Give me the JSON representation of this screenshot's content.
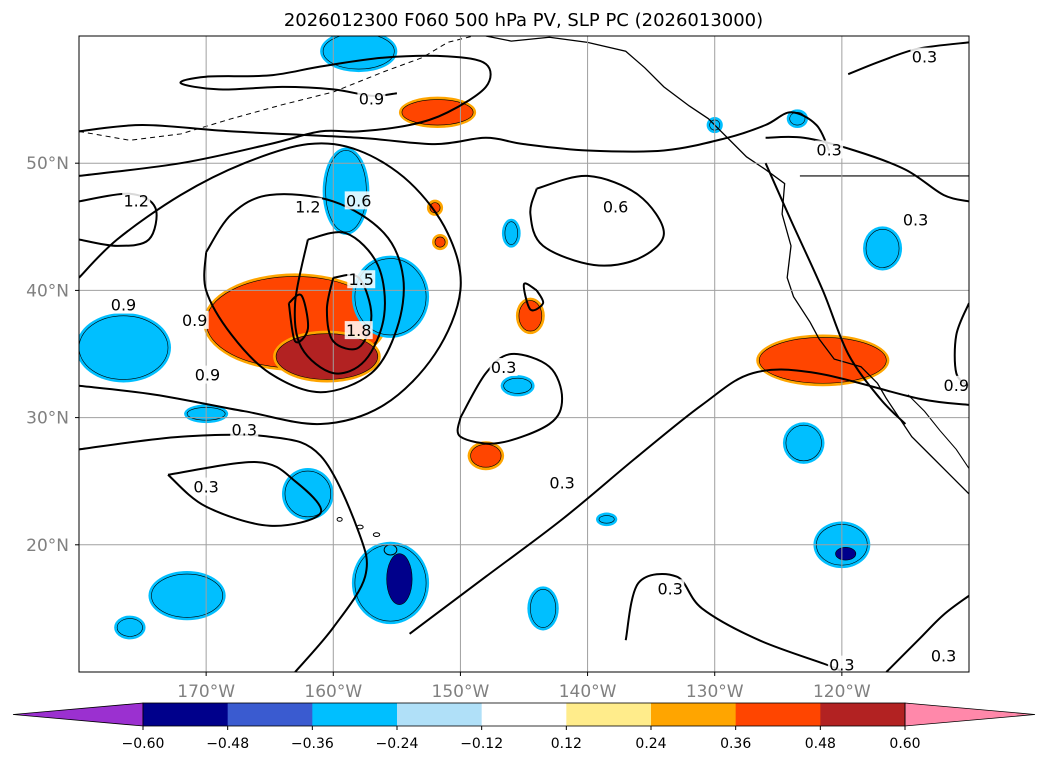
{
  "title": "2026012300 F060 500 hPa PV, SLP PC (2026013000)",
  "chart_data": {
    "type": "heatmap",
    "title": "2026012300 F060 500 hPa PV, SLP PC (2026013000)",
    "xlabel": "",
    "ylabel": "",
    "xlim": [
      -180,
      -110
    ],
    "ylim": [
      10,
      60
    ],
    "grid": true,
    "x_ticks": [
      {
        "value": -170,
        "label": "170°W"
      },
      {
        "value": -160,
        "label": "160°W"
      },
      {
        "value": -150,
        "label": "150°W"
      },
      {
        "value": -140,
        "label": "140°W"
      },
      {
        "value": -130,
        "label": "130°W"
      },
      {
        "value": -120,
        "label": "120°W"
      }
    ],
    "y_ticks": [
      {
        "value": 20,
        "label": "20°N"
      },
      {
        "value": 30,
        "label": "30°N"
      },
      {
        "value": 40,
        "label": "40°N"
      },
      {
        "value": 50,
        "label": "50°N"
      }
    ],
    "colorbar": {
      "levels": [
        -0.6,
        -0.48,
        -0.36,
        -0.24,
        -0.12,
        0.12,
        0.24,
        0.36,
        0.48,
        0.6
      ],
      "tick_labels": [
        "−0.60",
        "−0.48",
        "−0.36",
        "−0.24",
        "−0.12",
        "0.12",
        "0.24",
        "0.36",
        "0.48",
        "0.60"
      ],
      "colors": [
        "#9b30d0",
        "#00008b",
        "#3a5bd0",
        "#00bfff",
        "#b0e0f8",
        "#ffffff",
        "#ffec8b",
        "#ffa500",
        "#ff4500",
        "#b22222",
        "#ff88aa"
      ],
      "extend": "both"
    },
    "contour_labels": [
      {
        "text": "0.9",
        "lon": -157.0,
        "lat": 55.0
      },
      {
        "text": "0.3",
        "lon": -113.5,
        "lat": 58.3
      },
      {
        "text": "0.3",
        "lon": -121.0,
        "lat": 51.0
      },
      {
        "text": "1.2",
        "lon": -175.5,
        "lat": 47.0
      },
      {
        "text": "1.2",
        "lon": -162.0,
        "lat": 46.5
      },
      {
        "text": "0.6",
        "lon": -158.0,
        "lat": 47.0
      },
      {
        "text": "0.6",
        "lon": -137.8,
        "lat": 46.5
      },
      {
        "text": "0.3",
        "lon": -114.2,
        "lat": 45.5
      },
      {
        "text": "1.5",
        "lon": -157.8,
        "lat": 40.8
      },
      {
        "text": "0.9",
        "lon": -176.5,
        "lat": 38.8
      },
      {
        "text": "0.9",
        "lon": -170.9,
        "lat": 37.6
      },
      {
        "text": "1.8",
        "lon": -158.0,
        "lat": 36.8
      },
      {
        "text": "0.3",
        "lon": -146.6,
        "lat": 33.9
      },
      {
        "text": "0.9",
        "lon": -169.9,
        "lat": 33.3
      },
      {
        "text": "0.9",
        "lon": -111.0,
        "lat": 32.5
      },
      {
        "text": "0.3",
        "lon": -167.0,
        "lat": 29.0
      },
      {
        "text": "0.3",
        "lon": -170.0,
        "lat": 24.5
      },
      {
        "text": "0.3",
        "lon": -142.0,
        "lat": 24.8
      },
      {
        "text": "0.3",
        "lon": -133.5,
        "lat": 16.5
      },
      {
        "text": "0.3",
        "lon": -120.0,
        "lat": 10.5
      },
      {
        "text": "0.3",
        "lon": -112.0,
        "lat": 11.2
      }
    ],
    "pv_anomalies": [
      {
        "value": -0.36,
        "lon": -158.0,
        "lat": 58.8,
        "rlon": 2.8,
        "rlat": 1.4
      },
      {
        "value": 0.36,
        "lon": -151.8,
        "lat": 54.0,
        "rlon": 2.8,
        "rlat": 1.0
      },
      {
        "value": -0.36,
        "lon": -159.0,
        "lat": 47.8,
        "rlon": 1.6,
        "rlat": 3.2
      },
      {
        "value": 0.36,
        "lon": -163.0,
        "lat": 37.5,
        "rlon": 7.0,
        "rlat": 3.6
      },
      {
        "value": 0.48,
        "lon": -160.5,
        "lat": 34.8,
        "rlon": 4.0,
        "rlat": 1.8
      },
      {
        "value": -0.36,
        "lon": -155.5,
        "lat": 39.5,
        "rlon": 2.8,
        "rlat": 3.0
      },
      {
        "value": -0.36,
        "lon": -176.5,
        "lat": 35.5,
        "rlon": 3.5,
        "rlat": 2.5
      },
      {
        "value": -0.36,
        "lon": -170.0,
        "lat": 30.3,
        "rlon": 1.5,
        "rlat": 0.5
      },
      {
        "value": -0.36,
        "lon": -162.0,
        "lat": 24.0,
        "rlon": 1.8,
        "rlat": 1.8
      },
      {
        "value": -0.36,
        "lon": -171.5,
        "lat": 16.0,
        "rlon": 2.8,
        "rlat": 1.7
      },
      {
        "value": -0.36,
        "lon": -176.0,
        "lat": 13.5,
        "rlon": 1.0,
        "rlat": 0.7
      },
      {
        "value": -0.36,
        "lon": -155.5,
        "lat": 17.0,
        "rlon": 2.8,
        "rlat": 3.0
      },
      {
        "value": -0.6,
        "lon": -154.8,
        "lat": 17.3,
        "rlon": 1.0,
        "rlat": 2.0
      },
      {
        "value": 0.36,
        "lon": -144.5,
        "lat": 38.0,
        "rlon": 0.9,
        "rlat": 1.2
      },
      {
        "value": 0.36,
        "lon": -148.0,
        "lat": 27.0,
        "rlon": 1.2,
        "rlat": 0.9
      },
      {
        "value": -0.36,
        "lon": -145.5,
        "lat": 32.5,
        "rlon": 1.1,
        "rlat": 0.6
      },
      {
        "value": -0.36,
        "lon": -146.0,
        "lat": 44.5,
        "rlon": 0.5,
        "rlat": 0.9
      },
      {
        "value": -0.36,
        "lon": -143.5,
        "lat": 15.0,
        "rlon": 1.0,
        "rlat": 1.5
      },
      {
        "value": -0.36,
        "lon": -123.0,
        "lat": 28.0,
        "rlon": 1.4,
        "rlat": 1.4
      },
      {
        "value": -0.36,
        "lon": -120.0,
        "lat": 20.0,
        "rlon": 2.0,
        "rlat": 1.6
      },
      {
        "value": -0.6,
        "lon": -119.7,
        "lat": 19.3,
        "rlon": 0.8,
        "rlat": 0.5
      },
      {
        "value": -0.36,
        "lon": -116.8,
        "lat": 43.3,
        "rlon": 1.3,
        "rlat": 1.5
      },
      {
        "value": 0.36,
        "lon": -121.5,
        "lat": 34.5,
        "rlon": 5.0,
        "rlat": 1.8
      },
      {
        "value": 0.36,
        "lon": -152.0,
        "lat": 46.5,
        "rlon": 0.4,
        "rlat": 0.4
      },
      {
        "value": 0.36,
        "lon": -151.6,
        "lat": 43.8,
        "rlon": 0.4,
        "rlat": 0.4
      },
      {
        "value": -0.36,
        "lon": -130.0,
        "lat": 53.0,
        "rlon": 0.4,
        "rlat": 0.4
      },
      {
        "value": -0.36,
        "lon": -123.5,
        "lat": 53.5,
        "rlon": 0.6,
        "rlat": 0.5
      },
      {
        "value": -0.36,
        "lon": -138.5,
        "lat": 22.0,
        "rlon": 0.6,
        "rlat": 0.3
      }
    ],
    "slp_contours": [
      {
        "level": 0.3,
        "points": [
          [
            -180,
            52.5
          ],
          [
            -175,
            53.0
          ],
          [
            -168,
            52.5
          ],
          [
            -158,
            52.0
          ],
          [
            -152,
            51.5
          ],
          [
            -148,
            52.0
          ],
          [
            -145,
            51.5
          ],
          [
            -140,
            51.0
          ],
          [
            -134,
            51.0
          ],
          [
            -129,
            52.0
          ],
          [
            -126,
            53.0
          ],
          [
            -124,
            54.0
          ],
          [
            -122,
            53.0
          ],
          [
            -121,
            51.0
          ]
        ]
      },
      {
        "level": 0.3,
        "points": [
          [
            -119.5,
            57.0
          ],
          [
            -117,
            58.0
          ],
          [
            -114,
            59.0
          ],
          [
            -110,
            59.5
          ]
        ]
      },
      {
        "level": 0.3,
        "points": [
          [
            -180,
            49.0
          ],
          [
            -172,
            50.0
          ],
          [
            -165,
            51.5
          ],
          [
            -161,
            52.5
          ],
          [
            -158,
            52.5
          ],
          [
            -154,
            53.0
          ],
          [
            -151,
            54.0
          ],
          [
            -148,
            56.0
          ],
          [
            -148,
            57.8
          ],
          [
            -151,
            58.4
          ],
          [
            -156,
            58.3
          ],
          [
            -161,
            57.6
          ],
          [
            -165,
            56.9
          ],
          [
            -170,
            56.8
          ],
          [
            -172,
            56.3
          ],
          [
            -169,
            55.8
          ],
          [
            -164,
            56.0
          ],
          [
            -160,
            55.8
          ],
          [
            -157,
            55.3
          ],
          [
            -155,
            55.5
          ]
        ]
      },
      {
        "level": 0.9,
        "points": [
          [
            -180,
            41.0
          ],
          [
            -177,
            44.0
          ],
          [
            -172,
            47.5
          ],
          [
            -167,
            50.0
          ],
          [
            -162,
            51.5
          ],
          [
            -158,
            51.0
          ],
          [
            -154,
            48.5
          ],
          [
            -151,
            44.5
          ],
          [
            -150,
            40.0
          ],
          [
            -152,
            35.0
          ],
          [
            -156,
            31.0
          ],
          [
            -161,
            29.5
          ],
          [
            -167,
            30.5
          ],
          [
            -174,
            31.8
          ],
          [
            -180,
            32.5
          ]
        ]
      },
      {
        "level": 1.2,
        "points": [
          [
            -170,
            43.0
          ],
          [
            -168,
            46.0
          ],
          [
            -165,
            47.5
          ],
          [
            -160,
            47.0
          ],
          [
            -156,
            44.5
          ],
          [
            -154.5,
            41.0
          ],
          [
            -155,
            37.0
          ],
          [
            -157,
            33.5
          ],
          [
            -161,
            32.0
          ],
          [
            -165,
            33.5
          ],
          [
            -168,
            36.5
          ],
          [
            -170,
            40.0
          ],
          [
            -170,
            43.0
          ]
        ]
      },
      {
        "level": 1.2,
        "points": [
          [
            -180,
            47.0
          ],
          [
            -176,
            47.6
          ],
          [
            -174,
            46.5
          ],
          [
            -174.5,
            44.0
          ],
          [
            -177,
            43.5
          ],
          [
            -180,
            44.0
          ]
        ]
      },
      {
        "level": 1.5,
        "points": [
          [
            -162,
            44.0
          ],
          [
            -159,
            44.5
          ],
          [
            -156.5,
            42.0
          ],
          [
            -156,
            38.0
          ],
          [
            -157.5,
            34.5
          ],
          [
            -160,
            33.5
          ],
          [
            -162.5,
            35.5
          ],
          [
            -163,
            39.0
          ],
          [
            -162,
            44.0
          ]
        ]
      },
      {
        "level": 1.8,
        "points": [
          [
            -160,
            41.0
          ],
          [
            -158,
            41.0
          ],
          [
            -157,
            38.0
          ],
          [
            -158,
            35.5
          ],
          [
            -160,
            36.0
          ],
          [
            -160.5,
            38.5
          ],
          [
            -160,
            41.0
          ]
        ]
      },
      {
        "level": 1.8,
        "points": [
          [
            -163.5,
            39.0
          ],
          [
            -162.5,
            39.6
          ],
          [
            -162,
            37.0
          ],
          [
            -163,
            36.0
          ],
          [
            -163.5,
            39.0
          ]
        ]
      },
      {
        "level": 0.3,
        "points": [
          [
            -150,
            30.0
          ],
          [
            -148,
            33.5
          ],
          [
            -146,
            35.0
          ],
          [
            -143,
            34.0
          ],
          [
            -142,
            31.5
          ],
          [
            -143,
            29.5
          ],
          [
            -147,
            28.0
          ],
          [
            -150,
            28.5
          ],
          [
            -150,
            30.0
          ]
        ]
      },
      {
        "level": 0.3,
        "points": [
          [
            -144,
            40.0
          ],
          [
            -145,
            40.5
          ],
          [
            -144.5,
            38.5
          ],
          [
            -143.5,
            39.0
          ],
          [
            -144,
            40.0
          ]
        ]
      },
      {
        "level": 0.6,
        "points": [
          [
            -144,
            48.0
          ],
          [
            -140,
            49.0
          ],
          [
            -136,
            47.5
          ],
          [
            -134,
            44.5
          ],
          [
            -136,
            42.5
          ],
          [
            -139.5,
            42.0
          ],
          [
            -143.5,
            43.5
          ],
          [
            -144.5,
            46.0
          ],
          [
            -144,
            48.0
          ]
        ]
      },
      {
        "level": 0.3,
        "points": [
          [
            -180,
            27.5
          ],
          [
            -172,
            28.5
          ],
          [
            -165,
            28.5
          ],
          [
            -161,
            27.0
          ],
          [
            -158,
            21.0
          ],
          [
            -157.5,
            17.5
          ],
          [
            -160,
            13.5
          ],
          [
            -163,
            10.0
          ]
        ]
      },
      {
        "level": 0.3,
        "points": [
          [
            -173,
            25.5
          ],
          [
            -170,
            23.0
          ],
          [
            -165,
            21.5
          ],
          [
            -161,
            22.5
          ],
          [
            -163,
            25.0
          ],
          [
            -166,
            26.5
          ],
          [
            -173,
            25.5
          ]
        ]
      },
      {
        "level": 0.3,
        "points": [
          [
            -154,
            13.0
          ],
          [
            -148,
            17.5
          ],
          [
            -142,
            22.0
          ],
          [
            -136,
            27.0
          ],
          [
            -131,
            31.0
          ],
          [
            -127,
            33.5
          ],
          [
            -122,
            33.5
          ],
          [
            -114,
            31.5
          ],
          [
            -110,
            31.0
          ]
        ]
      },
      {
        "level": 0.3,
        "points": [
          [
            -137,
            12.5
          ],
          [
            -136,
            17.0
          ],
          [
            -133,
            17.5
          ],
          [
            -131,
            15.0
          ],
          [
            -126.5,
            12.5
          ],
          [
            -121,
            10.5
          ],
          [
            -120,
            10.0
          ]
        ]
      },
      {
        "level": 0.3,
        "points": [
          [
            -116.5,
            10.0
          ],
          [
            -114,
            12.5
          ],
          [
            -112,
            14.5
          ],
          [
            -110,
            16.0
          ]
        ]
      },
      {
        "level": 0.3,
        "points": [
          [
            -126,
            50.0
          ],
          [
            -124,
            45.5
          ],
          [
            -121.5,
            40.0
          ],
          [
            -119.5,
            35.0
          ],
          [
            -117,
            31.5
          ],
          [
            -115,
            29.5
          ]
        ]
      },
      {
        "level": 0.6,
        "points": [
          [
            -126,
            52.0
          ],
          [
            -123,
            52.0
          ],
          [
            -119,
            51.0
          ],
          [
            -115,
            49.5
          ],
          [
            -112,
            47.5
          ],
          [
            -110,
            47.0
          ]
        ]
      },
      {
        "level": 0.9,
        "points": [
          [
            -110,
            39.0
          ],
          [
            -111,
            36.5
          ],
          [
            -111,
            33.5
          ],
          [
            -110,
            32.5
          ]
        ]
      }
    ]
  }
}
